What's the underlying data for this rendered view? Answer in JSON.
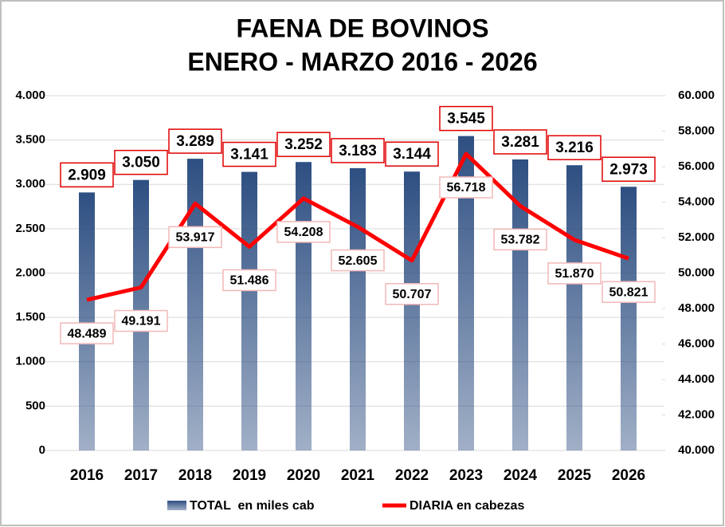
{
  "chart_data": {
    "type": "bar",
    "title": "FAENA DE BOVINOS",
    "subtitle": "ENERO - MARZO 2016 - 2026",
    "categories": [
      "2016",
      "2017",
      "2018",
      "2019",
      "2020",
      "2021",
      "2022",
      "2023",
      "2024",
      "2025",
      "2026"
    ],
    "series": [
      {
        "name": "TOTAL  en miles cab",
        "type": "bar",
        "color": "#2e4f82",
        "values": [
          2909,
          3050,
          3289,
          3141,
          3252,
          3183,
          3144,
          3545,
          3281,
          3216,
          2973
        ],
        "value_labels": [
          "2.909",
          "3.050",
          "3.289",
          "3.141",
          "3.252",
          "3.183",
          "3.144",
          "3.545",
          "3.281",
          "3.216",
          "2.973"
        ]
      },
      {
        "name": "DIARIA en cabezas",
        "type": "line",
        "axis": "y2",
        "color": "#ff0000",
        "values": [
          48489,
          49191,
          53917,
          51486,
          54208,
          52605,
          50707,
          56718,
          53782,
          51870,
          50821
        ],
        "value_labels": [
          "48.489",
          "49.191",
          "53.917",
          "51.486",
          "54.208",
          "52.605",
          "50.707",
          "56.718",
          "53.782",
          "51.870",
          "50.821"
        ]
      }
    ],
    "ylim": [
      0,
      4000
    ],
    "yticks": [
      0,
      500,
      {
        "value": 1000,
        "label": "1.000"
      },
      {
        "value": 1500,
        "label": "1.500"
      },
      {
        "value": 2000,
        "label": "2.000"
      },
      {
        "value": 2500,
        "label": "2.500"
      },
      {
        "value": 3000,
        "label": "3.000"
      },
      {
        "value": 3500,
        "label": "3.500"
      },
      {
        "value": 4000,
        "label": "4.000"
      }
    ],
    "y2lim": [
      40000,
      60000
    ],
    "y2ticks": [
      {
        "value": 40000,
        "label": "40.000"
      },
      {
        "value": 42000,
        "label": "42.000"
      },
      {
        "value": 44000,
        "label": "44.000"
      },
      {
        "value": 46000,
        "label": "46.000"
      },
      {
        "value": 48000,
        "label": "48.000"
      },
      {
        "value": 50000,
        "label": "50.000"
      },
      {
        "value": 52000,
        "label": "52.000"
      },
      {
        "value": 54000,
        "label": "54.000"
      },
      {
        "value": 56000,
        "label": "56.000"
      },
      {
        "value": 58000,
        "label": "58.000"
      },
      {
        "value": 60000,
        "label": "60.000"
      }
    ],
    "grid": true,
    "legend": "bottom"
  }
}
